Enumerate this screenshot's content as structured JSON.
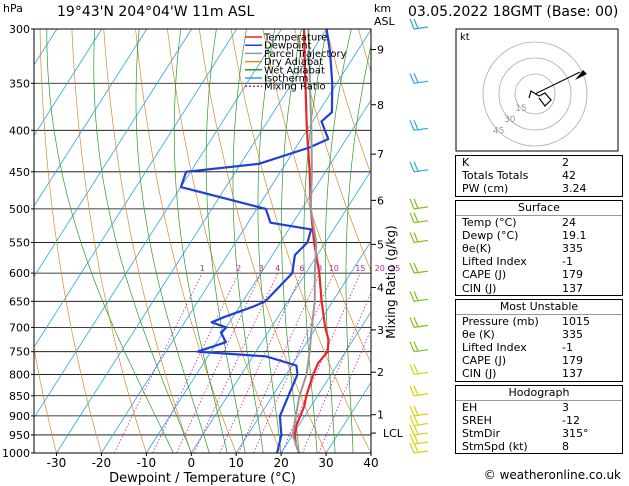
{
  "header": {
    "location": "19°43'N 204°04'W 11m ASL",
    "datetime": "03.05.2022 18GMT (Base: 00)",
    "y_unit": "hPa",
    "height_unit": "km",
    "height_unit2": "ASL"
  },
  "copyright": "© weatheronline.co.uk",
  "legend": [
    {
      "label": "Temperature",
      "color": "#e8262a",
      "dash": ""
    },
    {
      "label": "Dewpoint",
      "color": "#1f3fd6",
      "dash": ""
    },
    {
      "label": "Parcel Trajectory",
      "color": "#999999",
      "dash": ""
    },
    {
      "label": "Dry Adiabat",
      "color": "#d88a2a",
      "dash": ""
    },
    {
      "label": "Wet Adiabat",
      "color": "#2a9a2a",
      "dash": ""
    },
    {
      "label": "Isotherm",
      "color": "#2aa6e0",
      "dash": ""
    },
    {
      "label": "Mixing Ratio",
      "color": "#c0269a",
      "dash": "2,2"
    }
  ],
  "chart_data": {
    "type": "line",
    "title": "",
    "xlabel": "Dewpoint / Temperature (°C)",
    "ylabel": "hPa",
    "y2label": "Mixing Ratio (g/kg)",
    "xlim": [
      -35,
      40
    ],
    "ylim": [
      1000,
      300
    ],
    "x_ticks": [
      -30,
      -20,
      -10,
      0,
      10,
      20,
      30,
      40
    ],
    "p_ticks": [
      300,
      350,
      400,
      450,
      500,
      550,
      600,
      650,
      700,
      750,
      800,
      850,
      900,
      950,
      1000
    ],
    "km_ticks": [
      {
        "km": "1",
        "p": 897
      },
      {
        "km": "2",
        "p": 795
      },
      {
        "km": "3",
        "p": 705
      },
      {
        "km": "4",
        "p": 625
      },
      {
        "km": "5",
        "p": 553
      },
      {
        "km": "6",
        "p": 488
      },
      {
        "km": "7",
        "p": 428
      },
      {
        "km": "8",
        "p": 372
      },
      {
        "km": "9",
        "p": 318
      }
    ],
    "lcl": {
      "label": "LCL",
      "p": 945
    },
    "mixing_ratio_labels": [
      "1",
      "2",
      "3",
      "4",
      "6",
      "8",
      "10",
      "15",
      "20",
      "25"
    ],
    "mixing_ratio_values": [
      1,
      2,
      3,
      4,
      6,
      8,
      10,
      15,
      20,
      25
    ],
    "mixing_ratio_label_p": 600,
    "series": [
      {
        "name": "Temperature",
        "color": "#e8262a",
        "points": [
          [
            1000,
            24
          ],
          [
            975,
            22
          ],
          [
            950,
            20.5
          ],
          [
            925,
            19.5
          ],
          [
            900,
            19
          ],
          [
            875,
            18.5
          ],
          [
            850,
            17.5
          ],
          [
            800,
            16
          ],
          [
            775,
            15.5
          ],
          [
            750,
            16
          ],
          [
            725,
            14.5
          ],
          [
            700,
            12
          ],
          [
            650,
            7.5
          ],
          [
            600,
            3
          ],
          [
            550,
            -2.5
          ],
          [
            500,
            -8
          ],
          [
            450,
            -13.5
          ],
          [
            400,
            -20
          ],
          [
            350,
            -27
          ],
          [
            300,
            -35
          ]
        ]
      },
      {
        "name": "Dewpoint",
        "color": "#1f3fd6",
        "points": [
          [
            1000,
            19.1
          ],
          [
            950,
            17.5
          ],
          [
            925,
            16
          ],
          [
            900,
            14.5
          ],
          [
            850,
            13.5
          ],
          [
            800,
            12.5
          ],
          [
            780,
            11
          ],
          [
            760,
            3
          ],
          [
            750,
            -13
          ],
          [
            730,
            -8
          ],
          [
            710,
            -10.5
          ],
          [
            700,
            -10
          ],
          [
            690,
            -14
          ],
          [
            680,
            -12
          ],
          [
            660,
            -7
          ],
          [
            650,
            -5
          ],
          [
            600,
            -3
          ],
          [
            570,
            -5
          ],
          [
            550,
            -4
          ],
          [
            530,
            -5
          ],
          [
            520,
            -15
          ],
          [
            500,
            -18
          ],
          [
            470,
            -40
          ],
          [
            450,
            -41
          ],
          [
            440,
            -26
          ],
          [
            420,
            -17
          ],
          [
            410,
            -14
          ],
          [
            400,
            -16
          ],
          [
            390,
            -18
          ],
          [
            380,
            -17
          ],
          [
            350,
            -21
          ],
          [
            320,
            -26
          ],
          [
            300,
            -30
          ]
        ]
      },
      {
        "name": "Parcel Trajectory",
        "color": "#999999",
        "points": [
          [
            1000,
            24
          ],
          [
            950,
            20
          ],
          [
            900,
            18
          ],
          [
            850,
            16
          ],
          [
            800,
            14.5
          ],
          [
            750,
            12
          ],
          [
            700,
            9
          ],
          [
            650,
            6
          ],
          [
            600,
            2
          ],
          [
            550,
            -2
          ],
          [
            500,
            -8
          ],
          [
            450,
            -13
          ],
          [
            400,
            -19
          ],
          [
            350,
            -26
          ],
          [
            300,
            -34
          ]
        ]
      }
    ]
  },
  "stats": {
    "top": [
      {
        "k": "K",
        "v": "2"
      },
      {
        "k": "Totals Totals",
        "v": "42"
      },
      {
        "k": "PW (cm)",
        "v": "3.24"
      }
    ],
    "surface": {
      "title": "Surface",
      "rows": [
        {
          "k": "Temp (°C)",
          "v": "24"
        },
        {
          "k": "Dewp (°C)",
          "v": "19.1"
        },
        {
          "k": "θe(K)",
          "v": "335"
        },
        {
          "k": "Lifted Index",
          "v": "-1"
        },
        {
          "k": "CAPE (J)",
          "v": "179"
        },
        {
          "k": "CIN (J)",
          "v": "137"
        }
      ]
    },
    "unstable": {
      "title": "Most Unstable",
      "rows": [
        {
          "k": "Pressure (mb)",
          "v": "1015"
        },
        {
          "k": "θe (K)",
          "v": "335"
        },
        {
          "k": "Lifted Index",
          "v": "-1"
        },
        {
          "k": "CAPE (J)",
          "v": "179"
        },
        {
          "k": "CIN (J)",
          "v": "137"
        }
      ]
    },
    "hodograph": {
      "title": "Hodograph",
      "rows": [
        {
          "k": "EH",
          "v": "3"
        },
        {
          "k": "SREH",
          "v": "-12"
        },
        {
          "k": "StmDir",
          "v": "315°"
        },
        {
          "k": "StmSpd (kt)",
          "v": "8"
        }
      ]
    }
  },
  "hodo": {
    "label": "kt",
    "ring_labels": [
      "45",
      "30",
      "15"
    ]
  }
}
